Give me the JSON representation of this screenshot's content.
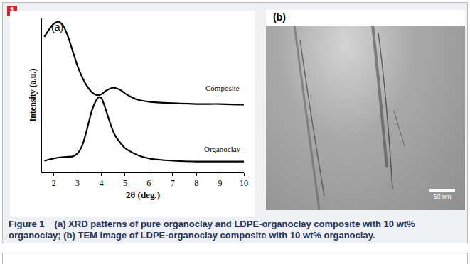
{
  "figure": {
    "badge": "1",
    "caption_label": "Figure 1",
    "caption": "(a) XRD patterns of pure organoclay and LDPE-organoclay composite with 10 wt% organoclay; (b) TEM image of LDPE-organoclay composite with 10 wt% organoclay.",
    "image": {
      "label": "(b)",
      "scale_bar": "50 nm"
    }
  },
  "chart_data": {
    "type": "line",
    "title": "(a)",
    "x_label": "2θ (deg.)",
    "y_label": "Intensity (a.u.)",
    "xlim": [
      1.5,
      10
    ],
    "xticks": [
      2,
      3,
      4,
      5,
      6,
      7,
      8,
      9,
      10
    ],
    "ylim": [
      0,
      10
    ],
    "yticks": [],
    "tick_labels": "x",
    "grid": false,
    "series": [
      {
        "color": "#000000",
        "x": [
          1.6,
          1.8,
          2.0,
          2.2,
          2.4,
          2.6,
          2.8,
          3.0,
          3.2,
          3.4,
          3.6,
          3.8,
          4.0,
          4.2,
          4.5,
          4.8,
          5.0,
          5.5,
          6.0,
          7,
          8,
          9,
          10
        ],
        "values": [
          8.8,
          9.28,
          9.66,
          9.8,
          9.52,
          8.8,
          7.84,
          6.88,
          6.15,
          5.58,
          5.19,
          5.0,
          5.05,
          5.29,
          5.48,
          5.34,
          5.1,
          4.71,
          4.57,
          4.47,
          4.42,
          4.42,
          4.38
        ]
      },
      {
        "color": "#000000",
        "x": [
          1.6,
          2.0,
          2.4,
          2.8,
          3.0,
          3.2,
          3.4,
          3.6,
          3.8,
          3.9,
          4.0,
          4.2,
          4.4,
          4.6,
          5.0,
          5.5,
          6.0,
          7,
          8,
          9,
          10
        ],
        "values": [
          0.72,
          0.87,
          0.96,
          1.0,
          1.2,
          1.73,
          2.79,
          3.99,
          4.71,
          4.86,
          4.81,
          3.99,
          3.03,
          2.31,
          1.54,
          1.1,
          0.87,
          0.72,
          0.67,
          0.67,
          0.67
        ]
      }
    ],
    "annotations": [
      {
        "text": "Composite",
        "x": 9.1,
        "y": 5.1
      },
      {
        "text": "Organoclay",
        "x": 9.1,
        "y": 1.1
      }
    ]
  }
}
